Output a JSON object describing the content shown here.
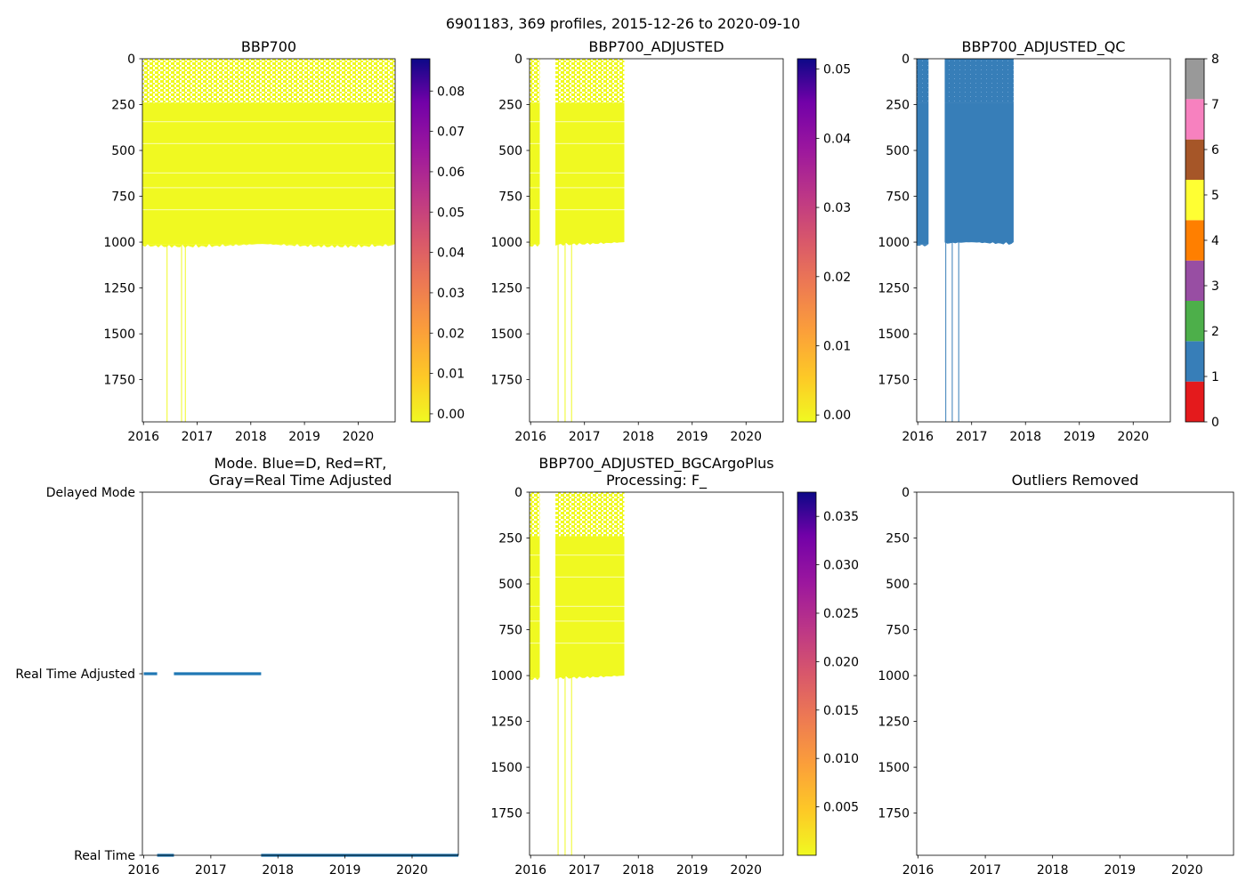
{
  "figure_title": "6901183, 369 profiles, 2015-12-26 to 2020-09-10",
  "chart_data": [
    {
      "id": "bbp700",
      "type": "heatmap",
      "title": "BBP700",
      "x_ticks": [
        "2016",
        "2017",
        "2018",
        "2019",
        "2020"
      ],
      "x_range": [
        2015.98,
        2020.69
      ],
      "y_ticks": [
        0,
        250,
        500,
        750,
        1000,
        1250,
        1500,
        1750
      ],
      "y_range": [
        0,
        1980
      ],
      "data_spans": [
        {
          "x0": 2015.98,
          "x1": 2020.69,
          "y1": 1010
        }
      ],
      "deep_profiles": [
        {
          "x": 2016.44,
          "y1": 1980
        },
        {
          "x": 2016.71,
          "y1": 1980
        },
        {
          "x": 2016.78,
          "y1": 1980
        }
      ],
      "colorbar": {
        "cmap": "plasma_r",
        "min": -0.002,
        "max": 0.088,
        "ticks": [
          "0.00",
          "0.01",
          "0.02",
          "0.03",
          "0.04",
          "0.05",
          "0.06",
          "0.07",
          "0.08"
        ],
        "tick_values": [
          0.0,
          0.01,
          0.02,
          0.03,
          0.04,
          0.05,
          0.06,
          0.07,
          0.08
        ]
      }
    },
    {
      "id": "bbp700_adjusted",
      "type": "heatmap",
      "title": "BBP700_ADJUSTED",
      "x_ticks": [
        "2016",
        "2017",
        "2018",
        "2019",
        "2020"
      ],
      "x_range": [
        2015.98,
        2020.69
      ],
      "y_ticks": [
        0,
        250,
        500,
        750,
        1000,
        1250,
        1500,
        1750
      ],
      "y_range": [
        0,
        1980
      ],
      "data_spans": [
        {
          "x0": 2015.98,
          "x1": 2016.17,
          "y1": 1010
        },
        {
          "x0": 2016.46,
          "x1": 2017.74,
          "y1": 1000
        }
      ],
      "deep_profiles": [
        {
          "x": 2016.51,
          "y1": 1980
        },
        {
          "x": 2016.64,
          "y1": 1980
        },
        {
          "x": 2016.76,
          "y1": 1980
        }
      ],
      "colorbar": {
        "cmap": "plasma_r",
        "min": -0.001,
        "max": 0.0515,
        "ticks": [
          "0.00",
          "0.01",
          "0.02",
          "0.03",
          "0.04",
          "0.05"
        ],
        "tick_values": [
          0.0,
          0.01,
          0.02,
          0.03,
          0.04,
          0.05
        ]
      }
    },
    {
      "id": "bbp700_adjusted_qc",
      "type": "heatmap",
      "title": "BBP700_ADJUSTED_QC",
      "x_ticks": [
        "2016",
        "2017",
        "2018",
        "2019",
        "2020"
      ],
      "x_range": [
        2015.98,
        2020.69
      ],
      "y_ticks": [
        0,
        250,
        500,
        750,
        1000,
        1250,
        1500,
        1750
      ],
      "y_range": [
        0,
        1980
      ],
      "data_spans": [
        {
          "x0": 2015.98,
          "x1": 2016.2,
          "y1": 1010
        },
        {
          "x0": 2016.5,
          "x1": 2017.78,
          "y1": 1000
        }
      ],
      "deep_profiles": [
        {
          "x": 2016.52,
          "y1": 1980
        },
        {
          "x": 2016.64,
          "y1": 1980
        },
        {
          "x": 2016.76,
          "y1": 1980
        }
      ],
      "qc_colorbar": {
        "ticks": [
          "0",
          "1",
          "2",
          "3",
          "4",
          "5",
          "6",
          "7",
          "8"
        ],
        "colors": [
          "#e41a1c",
          "#377eb8",
          "#4daf4a",
          "#984ea3",
          "#ff7f00",
          "#ffff33",
          "#a65628",
          "#f781bf",
          "#999999"
        ]
      }
    },
    {
      "id": "mode",
      "type": "scatter",
      "title_lines": [
        "Mode. Blue=D, Red=RT,",
        "Gray=Real Time Adjusted"
      ],
      "x_ticks": [
        "2016",
        "2017",
        "2018",
        "2019",
        "2020"
      ],
      "x_range": [
        2015.98,
        2020.69
      ],
      "y_categories": [
        "Delayed Mode",
        "Real Time Adjusted",
        "Real Time"
      ],
      "y_category_values": [
        2,
        1,
        0
      ],
      "y_range": [
        0,
        2
      ],
      "segments": [
        {
          "level": 1,
          "x0": 2016.0,
          "x1": 2016.2
        },
        {
          "level": 0,
          "x0": 2016.2,
          "x1": 2016.45
        },
        {
          "level": 1,
          "x0": 2016.45,
          "x1": 2017.75
        },
        {
          "level": 0,
          "x0": 2017.75,
          "x1": 2020.69
        }
      ]
    },
    {
      "id": "bbp700_bgcargoplus",
      "type": "heatmap",
      "title_lines": [
        "BBP700_ADJUSTED_BGCArgoPlus",
        "Processing: F_"
      ],
      "x_ticks": [
        "2016",
        "2017",
        "2018",
        "2019",
        "2020"
      ],
      "x_range": [
        2015.98,
        2020.69
      ],
      "y_ticks": [
        0,
        250,
        500,
        750,
        1000,
        1250,
        1500,
        1750
      ],
      "y_range": [
        0,
        1980
      ],
      "data_spans": [
        {
          "x0": 2015.98,
          "x1": 2016.17,
          "y1": 1010
        },
        {
          "x0": 2016.46,
          "x1": 2017.74,
          "y1": 1000
        }
      ],
      "deep_profiles": [
        {
          "x": 2016.51,
          "y1": 1980
        },
        {
          "x": 2016.64,
          "y1": 1980
        },
        {
          "x": 2016.76,
          "y1": 1980
        }
      ],
      "colorbar": {
        "cmap": "plasma_r",
        "min": 0.0,
        "max": 0.0375,
        "ticks": [
          "0.005",
          "0.010",
          "0.015",
          "0.020",
          "0.025",
          "0.030",
          "0.035"
        ],
        "tick_values": [
          0.005,
          0.01,
          0.015,
          0.02,
          0.025,
          0.03,
          0.035
        ]
      }
    },
    {
      "id": "outliers_removed",
      "type": "heatmap",
      "title": "Outliers Removed",
      "x_ticks": [
        "2016",
        "2017",
        "2018",
        "2019",
        "2020"
      ],
      "x_range": [
        2015.98,
        2020.69
      ],
      "y_ticks": [
        0,
        250,
        500,
        750,
        1000,
        1250,
        1500,
        1750
      ],
      "y_range": [
        0,
        1980
      ],
      "data_spans": [],
      "deep_profiles": []
    }
  ]
}
